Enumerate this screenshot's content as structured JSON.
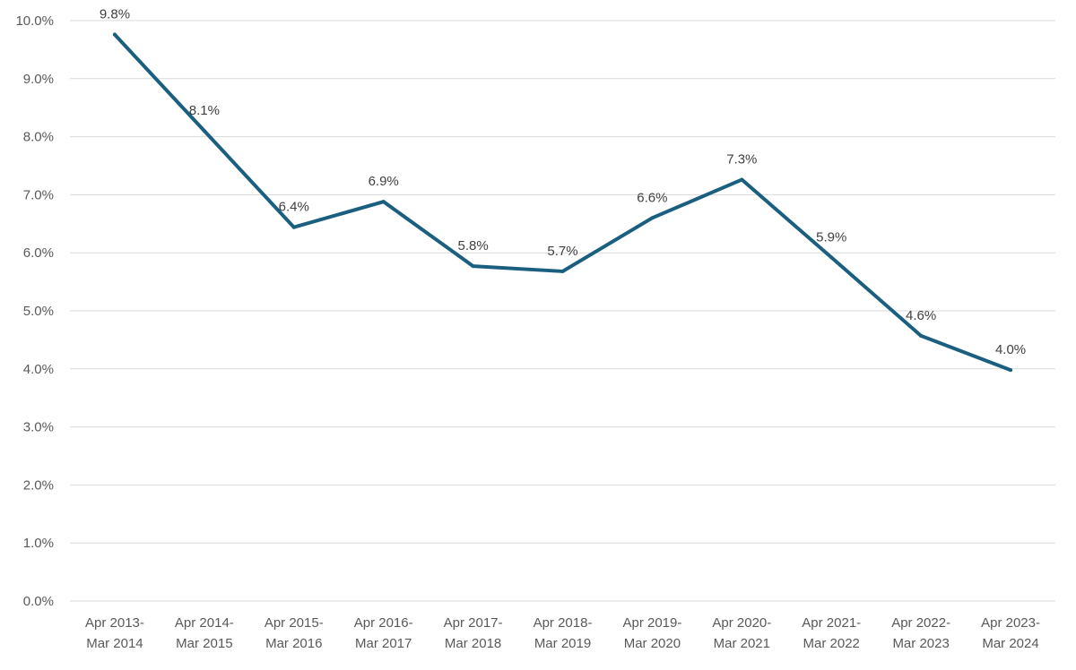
{
  "chart_data": {
    "type": "line",
    "title": "",
    "xlabel": "",
    "ylabel": "",
    "categories": [
      [
        "Apr 2013-",
        "Mar 2014"
      ],
      [
        "Apr 2014-",
        "Mar 2015"
      ],
      [
        "Apr 2015-",
        "Mar 2016"
      ],
      [
        "Apr 2016-",
        "Mar 2017"
      ],
      [
        "Apr 2017-",
        "Mar 2018"
      ],
      [
        "Apr 2018-",
        "Mar 2019"
      ],
      [
        "Apr 2019-",
        "Mar 2020"
      ],
      [
        "Apr 2020-",
        "Mar 2021"
      ],
      [
        "Apr 2021-",
        "Mar 2022"
      ],
      [
        "Apr 2022-",
        "Mar 2023"
      ],
      [
        "Apr 2023-",
        "Mar 2024"
      ]
    ],
    "series": [
      {
        "values": [
          9.76,
          8.1,
          6.44,
          6.88,
          5.77,
          5.68,
          6.6,
          7.26,
          5.92,
          4.57,
          3.98
        ],
        "data_labels": [
          "9.8%",
          "8.1%",
          "6.4%",
          "6.9%",
          "5.8%",
          "5.7%",
          "6.6%",
          "7.3%",
          "5.9%",
          "4.6%",
          "4.0%"
        ]
      }
    ],
    "ylim": [
      0,
      10
    ],
    "y_ticks": [
      "0.0%",
      "1.0%",
      "2.0%",
      "3.0%",
      "4.0%",
      "5.0%",
      "6.0%",
      "7.0%",
      "8.0%",
      "9.0%",
      "10.0%"
    ],
    "grid": true,
    "legend": "none",
    "colors": {
      "line": "#1a5f7f",
      "grid": "#d9d9d9",
      "tick_text": "#595959",
      "label_text": "#404040"
    }
  }
}
